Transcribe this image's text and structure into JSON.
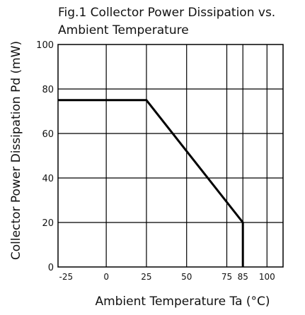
{
  "chart_data": {
    "type": "line",
    "title_line1": "Fig.1 Collector Power Dissipation vs.",
    "title_line2": "Ambient Temperature",
    "xlabel": "Ambient Temperature Ta (°C)",
    "ylabel": "Collector Power Dissipation Pd (mW)",
    "xlim": [
      -30,
      110
    ],
    "ylim": [
      0,
      100
    ],
    "x_ticks": [
      -25,
      0,
      25,
      50,
      75,
      85,
      100
    ],
    "x_tick_labels": [
      "-25",
      "0",
      "25",
      "50",
      "75",
      "85",
      "100"
    ],
    "y_ticks": [
      0,
      20,
      40,
      60,
      80,
      100
    ],
    "y_tick_labels": [
      "0",
      "20",
      "40",
      "60",
      "80",
      "100"
    ],
    "grid": true,
    "series": [
      {
        "x": [
          -30,
          25,
          85,
          85
        ],
        "y": [
          75,
          75,
          20,
          0
        ]
      }
    ]
  },
  "colors": {
    "line": "#000000",
    "grid": "#000000",
    "text": "#111111"
  }
}
